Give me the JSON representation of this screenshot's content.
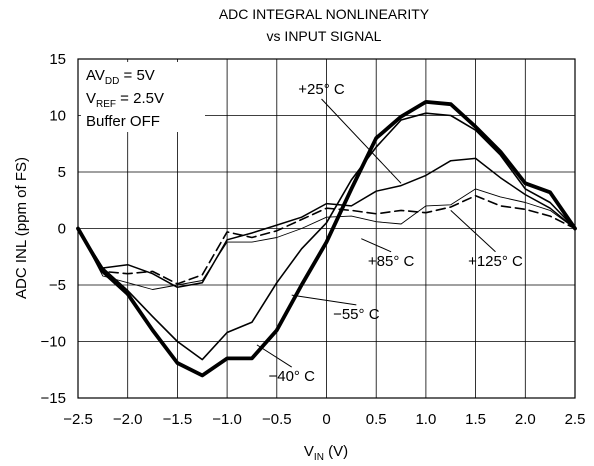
{
  "chart_data": {
    "type": "line",
    "title": "ADC INTEGRAL NONLINEARITY",
    "subtitle": "vs INPUT SIGNAL",
    "xlabel": {
      "main": "V",
      "sub": "IN",
      "unit": " (V)"
    },
    "ylabel": "ADC INL (ppm of FS)",
    "xlim": [
      -2.5,
      2.5
    ],
    "ylim": [
      -15,
      15
    ],
    "xticks": [
      "−2.5",
      "−2.0",
      "−1.5",
      "−1.0",
      "−0.5",
      "0",
      "0.5",
      "1.0",
      "1.5",
      "2.0",
      "2.5"
    ],
    "yticks": [
      "15",
      "10",
      "5",
      "0",
      "−5",
      "−10",
      "−15"
    ],
    "grid": true,
    "conditions": [
      {
        "main": "AV",
        "sub": "DD",
        "rest": " = 5V"
      },
      {
        "main": "V",
        "sub": "REF",
        "rest": " = 2.5V"
      },
      {
        "main": "Buffer OFF",
        "sub": "",
        "rest": ""
      }
    ],
    "series": [
      {
        "name": "+25° C",
        "style": "solid",
        "width": 1.5,
        "x": [
          -2.5,
          -2.25,
          -2.0,
          -1.75,
          -1.5,
          -1.25,
          -1.0,
          -0.75,
          -0.5,
          -0.25,
          0,
          0.25,
          0.5,
          0.75,
          1.0,
          1.25,
          1.5,
          1.75,
          2.0,
          2.25,
          2.5
        ],
        "y": [
          0,
          -3.5,
          -3.2,
          -4.0,
          -5.2,
          -4.8,
          -1.0,
          -0.4,
          0.3,
          1.0,
          2.2,
          2.0,
          3.3,
          3.8,
          4.7,
          6.0,
          6.2,
          4.5,
          3.0,
          1.8,
          0
        ]
      },
      {
        "name": "+85° C",
        "style": "solid",
        "width": 0.9,
        "x": [
          -2.5,
          -2.25,
          -2.0,
          -1.75,
          -1.5,
          -1.25,
          -1.0,
          -0.75,
          -0.5,
          -0.25,
          0,
          0.25,
          0.5,
          0.75,
          1.0,
          1.25,
          1.5,
          1.75,
          2.0,
          2.25,
          2.5
        ],
        "y": [
          0,
          -4.2,
          -4.8,
          -5.4,
          -5.0,
          -4.6,
          -1.2,
          -1.2,
          -0.8,
          0.0,
          1.0,
          1.1,
          0.6,
          0.4,
          2.0,
          2.1,
          3.5,
          2.8,
          2.3,
          1.6,
          0
        ]
      },
      {
        "name": "+125° C",
        "style": "dashed",
        "width": 1.6,
        "x": [
          -2.5,
          -2.25,
          -2.0,
          -1.75,
          -1.5,
          -1.25,
          -1.0,
          -0.75,
          -0.5,
          -0.25,
          0,
          0.25,
          0.5,
          0.75,
          1.0,
          1.25,
          1.5,
          1.75,
          2.0,
          2.25,
          2.5
        ],
        "y": [
          0,
          -3.8,
          -4.0,
          -3.8,
          -4.9,
          -4.1,
          -0.3,
          -0.8,
          -0.2,
          0.8,
          1.8,
          1.6,
          1.3,
          1.6,
          1.4,
          1.9,
          2.9,
          2.0,
          1.7,
          1.1,
          0
        ]
      },
      {
        "name": "−55° C",
        "style": "solid",
        "width": 1.6,
        "x": [
          -2.5,
          -2.25,
          -2.0,
          -1.75,
          -1.5,
          -1.25,
          -1.0,
          -0.75,
          -0.5,
          -0.25,
          0,
          0.25,
          0.5,
          0.75,
          1.0,
          1.25,
          1.5,
          1.75,
          2.0,
          2.25,
          2.5
        ],
        "y": [
          0,
          -3.5,
          -5.5,
          -7.8,
          -10.0,
          -11.6,
          -9.2,
          -8.3,
          -4.8,
          -1.8,
          0.5,
          4.3,
          7.2,
          9.6,
          10.2,
          10.0,
          8.7,
          6.5,
          3.5,
          2.3,
          0
        ]
      },
      {
        "name": "−40° C",
        "style": "solid",
        "width": 3.8,
        "x": [
          -2.5,
          -2.25,
          -2.0,
          -1.75,
          -1.5,
          -1.25,
          -1.0,
          -0.75,
          -0.5,
          -0.25,
          0,
          0.25,
          0.5,
          0.75,
          1.0,
          1.25,
          1.5,
          1.75,
          2.0,
          2.25,
          2.5
        ],
        "y": [
          0,
          -3.8,
          -5.8,
          -9.0,
          -11.9,
          -13.0,
          -11.5,
          -11.5,
          -9.0,
          -5.0,
          -1.2,
          3.5,
          8.0,
          9.9,
          11.2,
          11.0,
          9.0,
          6.8,
          4.0,
          3.2,
          0
        ]
      }
    ],
    "labels": [
      {
        "text": "+25° C",
        "series": 0,
        "label_at": [
          -0.05,
          11.9
        ],
        "point_at": [
          0.75,
          4.0
        ]
      },
      {
        "text": "+85° C",
        "series": 1,
        "label_at": [
          0.65,
          -3.3
        ],
        "point_at": [
          0.35,
          -0.9
        ]
      },
      {
        "text": "+125° C",
        "series": 2,
        "label_at": [
          1.7,
          -3.3
        ],
        "point_at": [
          1.25,
          1.6
        ]
      },
      {
        "text": "−55° C",
        "series": 3,
        "label_at": [
          0.3,
          -8.0
        ],
        "point_at": [
          -0.35,
          -5.9
        ]
      },
      {
        "text": "−40° C",
        "series": 4,
        "label_at": [
          -0.35,
          -13.5
        ],
        "point_at": [
          -0.7,
          -10.3
        ]
      }
    ]
  }
}
